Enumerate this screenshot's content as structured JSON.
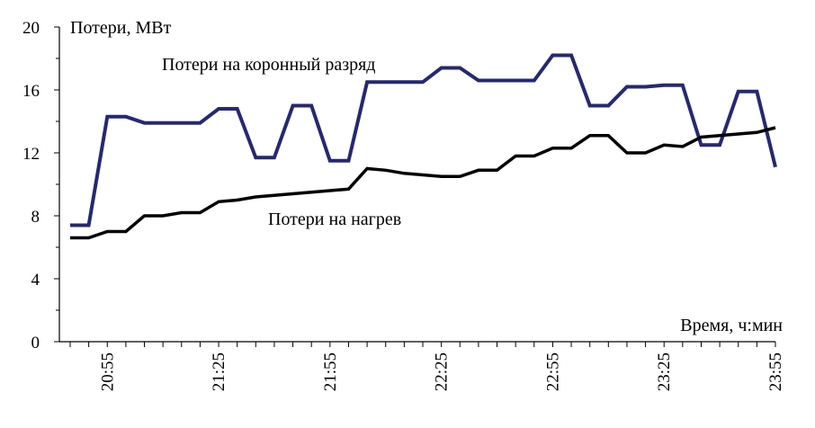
{
  "chart_data": {
    "type": "line",
    "ylabel": "Потери, МВт",
    "xlabel": "Время, ч:мин",
    "ylim": [
      0,
      20
    ],
    "y_ticks": [
      "0",
      "4",
      "8",
      "12",
      "16",
      "20"
    ],
    "x_tick_labels": [
      "20:55",
      "21:25",
      "21:55",
      "22:25",
      "22:55",
      "23:25",
      "23:55"
    ],
    "grid": false,
    "series": [
      {
        "name": "Потери на коронный разряд",
        "color": "#262873",
        "values": [
          7.4,
          7.4,
          14.3,
          14.3,
          13.9,
          13.9,
          13.9,
          13.9,
          14.8,
          14.8,
          11.7,
          11.7,
          15.0,
          15.0,
          11.5,
          11.5,
          16.5,
          16.5,
          16.5,
          16.5,
          17.4,
          17.4,
          16.6,
          16.6,
          16.6,
          16.6,
          18.2,
          18.2,
          15.0,
          15.0,
          16.2,
          16.2,
          16.3,
          16.3,
          12.5,
          12.5,
          15.9,
          15.9,
          11.1
        ]
      },
      {
        "name": "Потери на нагрев",
        "color": "#000000",
        "values": [
          6.6,
          6.6,
          7.0,
          7.0,
          8.0,
          8.0,
          8.2,
          8.2,
          8.9,
          9.0,
          9.2,
          9.3,
          9.4,
          9.5,
          9.6,
          9.7,
          11.0,
          10.9,
          10.7,
          10.6,
          10.5,
          10.5,
          10.9,
          10.9,
          11.8,
          11.8,
          12.3,
          12.3,
          13.1,
          13.1,
          12.0,
          12.0,
          12.5,
          12.4,
          13.0,
          13.1,
          13.2,
          13.3,
          13.6
        ]
      }
    ]
  }
}
